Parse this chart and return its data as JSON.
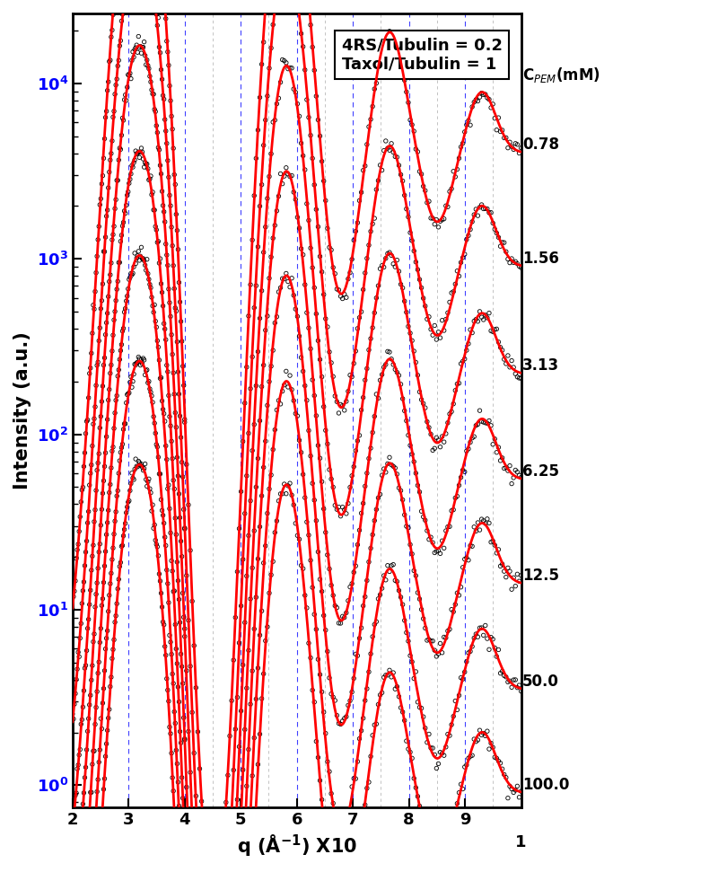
{
  "title": "",
  "xlabel": "q (Å$^{-1}$) X10",
  "ylabel": "Intensity (a.u.)",
  "annotation": "4RS/Tubulin = 0.2\nTaxol/Tubulin = 1",
  "cpem_label": "C$_{PEM}$(mM)",
  "concentrations": [
    "0.78",
    "1.56",
    "3.13",
    "6.25",
    "12.5",
    "50.0",
    "100.0"
  ],
  "xticks": [
    2,
    3,
    4,
    5,
    6,
    7,
    8,
    9
  ],
  "xmin": 2.0,
  "xmax": 10.0,
  "ymin": 0.75,
  "ymax": 25000,
  "blue_vlines": [
    2.0,
    3.0,
    4.0,
    5.0,
    6.0,
    7.0,
    8.0,
    9.0,
    10.0
  ],
  "gray_vlines": [
    4.5,
    5.5,
    6.5,
    7.5,
    8.5,
    9.5
  ],
  "scatter_color": "black",
  "fit_color": "red",
  "fit_linewidth": 2.0,
  "offsets": [
    4000,
    900,
    220,
    55,
    14,
    3.5,
    0.9
  ],
  "noise_level": 0.06
}
